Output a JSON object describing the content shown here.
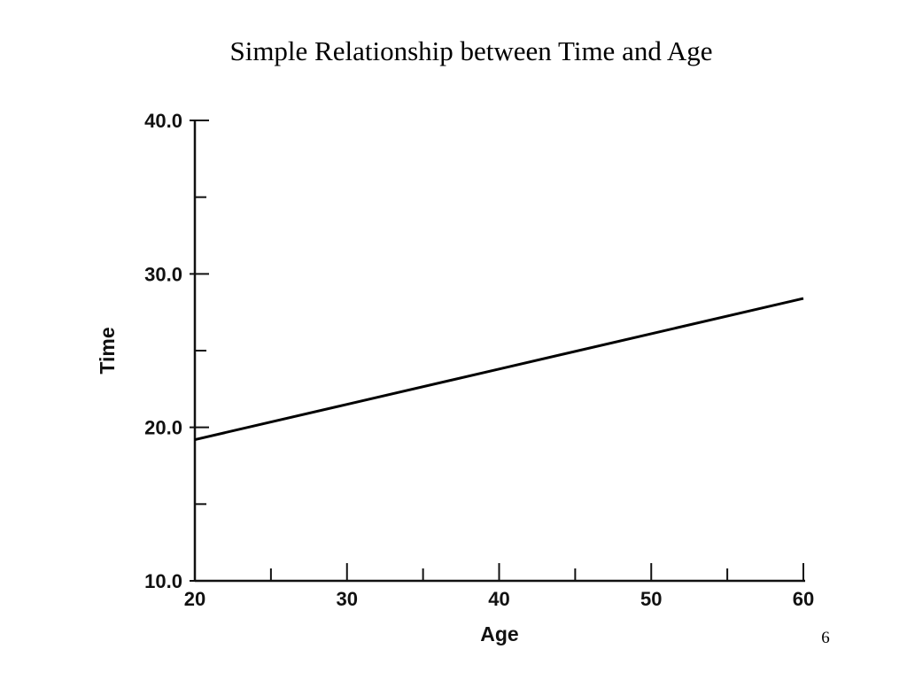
{
  "slide": {
    "title": "Simple Relationship between Time and Age",
    "page_number": "6"
  },
  "chart_data": {
    "type": "line",
    "title": "",
    "xlabel": "Age",
    "ylabel": "Time",
    "xlim": [
      20,
      60
    ],
    "ylim": [
      10,
      40
    ],
    "x_ticks": [
      20,
      30,
      40,
      50,
      60
    ],
    "x_tick_labels": [
      "20",
      "30",
      "40",
      "50",
      "60"
    ],
    "x_minor_ticks": [
      25,
      35,
      45,
      55
    ],
    "y_ticks": [
      10,
      20,
      30,
      40
    ],
    "y_tick_labels": [
      "10.0",
      "20.0",
      "30.0",
      "40.0"
    ],
    "y_minor_ticks": [
      15,
      25,
      35
    ],
    "grid": false,
    "series": [
      {
        "name": "",
        "x": [
          20,
          30,
          40,
          50,
          60
        ],
        "y": [
          19.2,
          21.5,
          23.8,
          26.1,
          28.4
        ]
      }
    ],
    "line_color": "#000000"
  }
}
